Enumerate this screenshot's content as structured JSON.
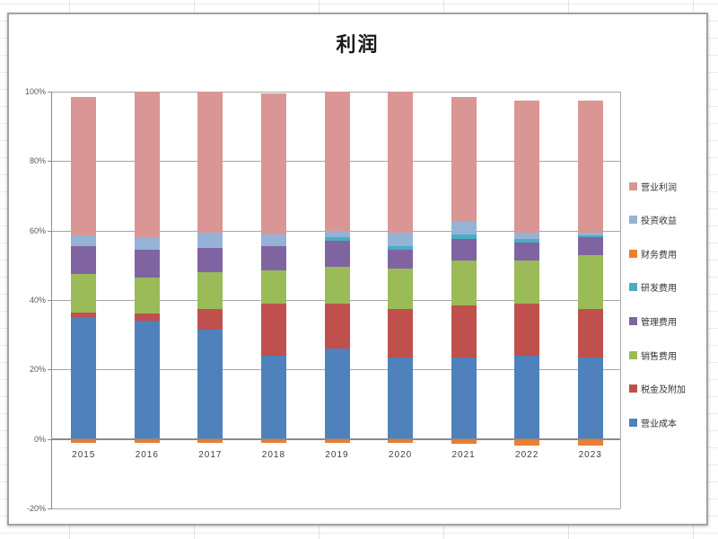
{
  "chart_data": {
    "type": "bar",
    "variant": "stacked-percent",
    "title": "利润",
    "categories": [
      "2015",
      "2016",
      "2017",
      "2018",
      "2019",
      "2020",
      "2021",
      "2022",
      "2023"
    ],
    "series": [
      {
        "key": "operating-cost",
        "name": "营业成本",
        "color": "#4F81BD",
        "values": [
          35,
          34,
          31.5,
          24,
          26,
          23.5,
          23.5,
          24,
          23.5
        ]
      },
      {
        "key": "taxes-surcharges",
        "name": "税金及附加",
        "color": "#C0504D",
        "values": [
          1.5,
          2,
          6,
          15,
          13,
          14,
          15,
          15,
          14
        ]
      },
      {
        "key": "selling-expenses",
        "name": "销售费用",
        "color": "#9BBB59",
        "values": [
          11,
          10.5,
          10.5,
          9.5,
          10.5,
          11.5,
          13,
          12.5,
          15.5
        ]
      },
      {
        "key": "admin-expenses",
        "name": "管理费用",
        "color": "#8064A2",
        "values": [
          8,
          8,
          7,
          7,
          7.5,
          5.5,
          6,
          5,
          5
        ]
      },
      {
        "key": "rd-expenses",
        "name": "研发费用",
        "color": "#4BACC6",
        "values": [
          0,
          0,
          0,
          0,
          1,
          1,
          1.5,
          1,
          0.5
        ]
      },
      {
        "key": "finance-expenses",
        "name": "财务费用",
        "color": "#ED7D31",
        "values": [
          -1,
          -1,
          -1,
          -1,
          -1,
          -1,
          -1.5,
          -2,
          -2
        ]
      },
      {
        "key": "investment-income",
        "name": "投资收益",
        "color": "#95B3D7",
        "values": [
          3,
          3.5,
          4.5,
          3.5,
          2,
          4,
          3.5,
          2,
          1
        ]
      },
      {
        "key": "operating-profit",
        "name": "营业利润",
        "color": "#D99694",
        "values": [
          40,
          42,
          40.5,
          40.5,
          40,
          40.5,
          36,
          38,
          38
        ]
      }
    ],
    "ylim": [
      -20,
      100
    ],
    "ytick_labels": [
      "100%",
      "80%",
      "60%",
      "40%",
      "20%",
      "0%",
      "-20%"
    ],
    "grid": "horizontal",
    "legend_position": "right",
    "legend_order": "reverse-of-stack"
  }
}
